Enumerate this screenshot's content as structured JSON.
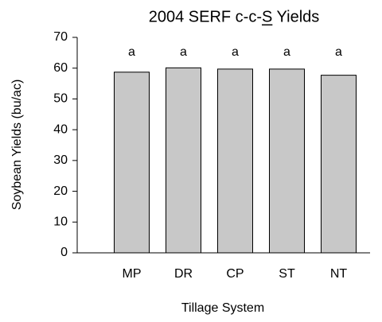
{
  "chart_data": {
    "type": "bar",
    "title": "2004 SERF c-c-S Yields",
    "x_label": "Tillage System",
    "y_label": "Soybean Yields (bu/ac)",
    "categories": [
      "MP",
      "DR",
      "CP",
      "ST",
      "NT"
    ],
    "values": [
      58.7,
      60.1,
      59.7,
      59.7,
      57.7
    ],
    "annotations": [
      "a",
      "a",
      "a",
      "a",
      "a"
    ],
    "color": "#c8c8c8",
    "ylim": [
      0,
      70
    ],
    "yticks": [
      0,
      10,
      20,
      30,
      40,
      50,
      60,
      70
    ],
    "grid": false
  }
}
